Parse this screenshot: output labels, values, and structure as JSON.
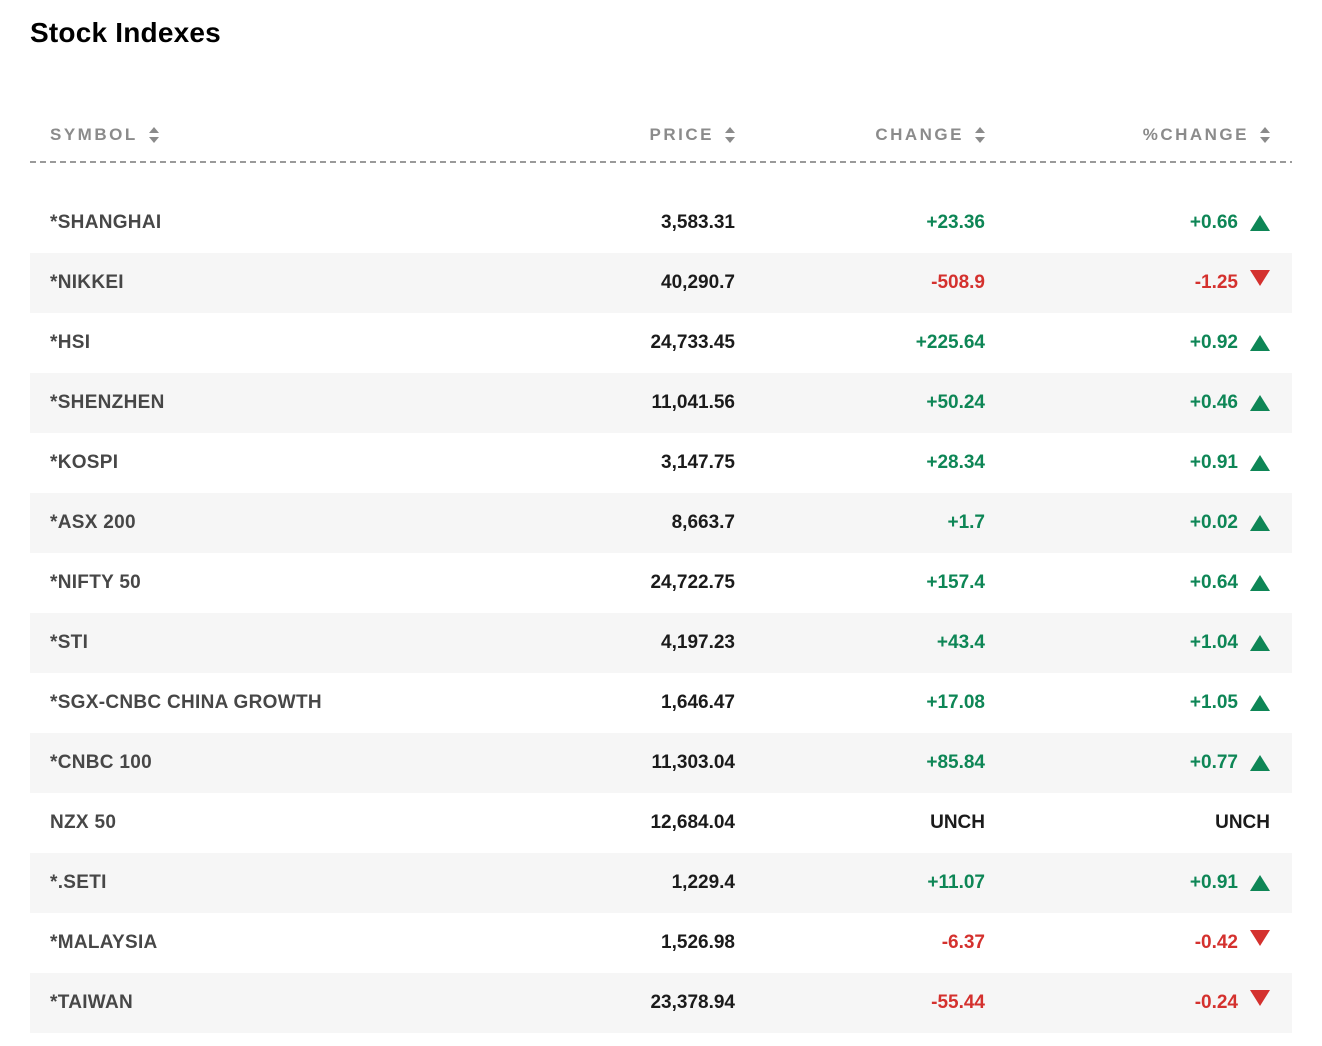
{
  "title": "Stock Indexes",
  "colors": {
    "positive": "#0e8656",
    "negative": "#d4312e",
    "neutral_text": "#1b1b1b",
    "symbol_text": "#474747",
    "header_text": "#8b8b8b",
    "alt_row_bg": "#f6f6f6",
    "divider": "#9a9a9a"
  },
  "table": {
    "columns": [
      {
        "label": "SYMBOL"
      },
      {
        "label": "PRICE"
      },
      {
        "label": "CHANGE"
      },
      {
        "label": "%CHANGE"
      }
    ],
    "rows": [
      {
        "symbol": "*SHANGHAI",
        "price": "3,583.31",
        "change": "+23.36",
        "percent_change": "+0.66",
        "direction": "up"
      },
      {
        "symbol": "*NIKKEI",
        "price": "40,290.7",
        "change": "-508.9",
        "percent_change": "-1.25",
        "direction": "down"
      },
      {
        "symbol": "*HSI",
        "price": "24,733.45",
        "change": "+225.64",
        "percent_change": "+0.92",
        "direction": "up"
      },
      {
        "symbol": "*SHENZHEN",
        "price": "11,041.56",
        "change": "+50.24",
        "percent_change": "+0.46",
        "direction": "up"
      },
      {
        "symbol": "*KOSPI",
        "price": "3,147.75",
        "change": "+28.34",
        "percent_change": "+0.91",
        "direction": "up"
      },
      {
        "symbol": "*ASX 200",
        "price": "8,663.7",
        "change": "+1.7",
        "percent_change": "+0.02",
        "direction": "up"
      },
      {
        "symbol": "*NIFTY 50",
        "price": "24,722.75",
        "change": "+157.4",
        "percent_change": "+0.64",
        "direction": "up"
      },
      {
        "symbol": "*STI",
        "price": "4,197.23",
        "change": "+43.4",
        "percent_change": "+1.04",
        "direction": "up"
      },
      {
        "symbol": "*SGX-CNBC CHINA GROWTH",
        "price": "1,646.47",
        "change": "+17.08",
        "percent_change": "+1.05",
        "direction": "up"
      },
      {
        "symbol": "*CNBC 100",
        "price": "11,303.04",
        "change": "+85.84",
        "percent_change": "+0.77",
        "direction": "up"
      },
      {
        "symbol": "NZX 50",
        "price": "12,684.04",
        "change": "UNCH",
        "percent_change": "UNCH",
        "direction": "unch"
      },
      {
        "symbol": "*.SETI",
        "price": "1,229.4",
        "change": "+11.07",
        "percent_change": "+0.91",
        "direction": "up"
      },
      {
        "symbol": "*MALAYSIA",
        "price": "1,526.98",
        "change": "-6.37",
        "percent_change": "-0.42",
        "direction": "down"
      },
      {
        "symbol": "*TAIWAN",
        "price": "23,378.94",
        "change": "-55.44",
        "percent_change": "-0.24",
        "direction": "down"
      }
    ]
  }
}
